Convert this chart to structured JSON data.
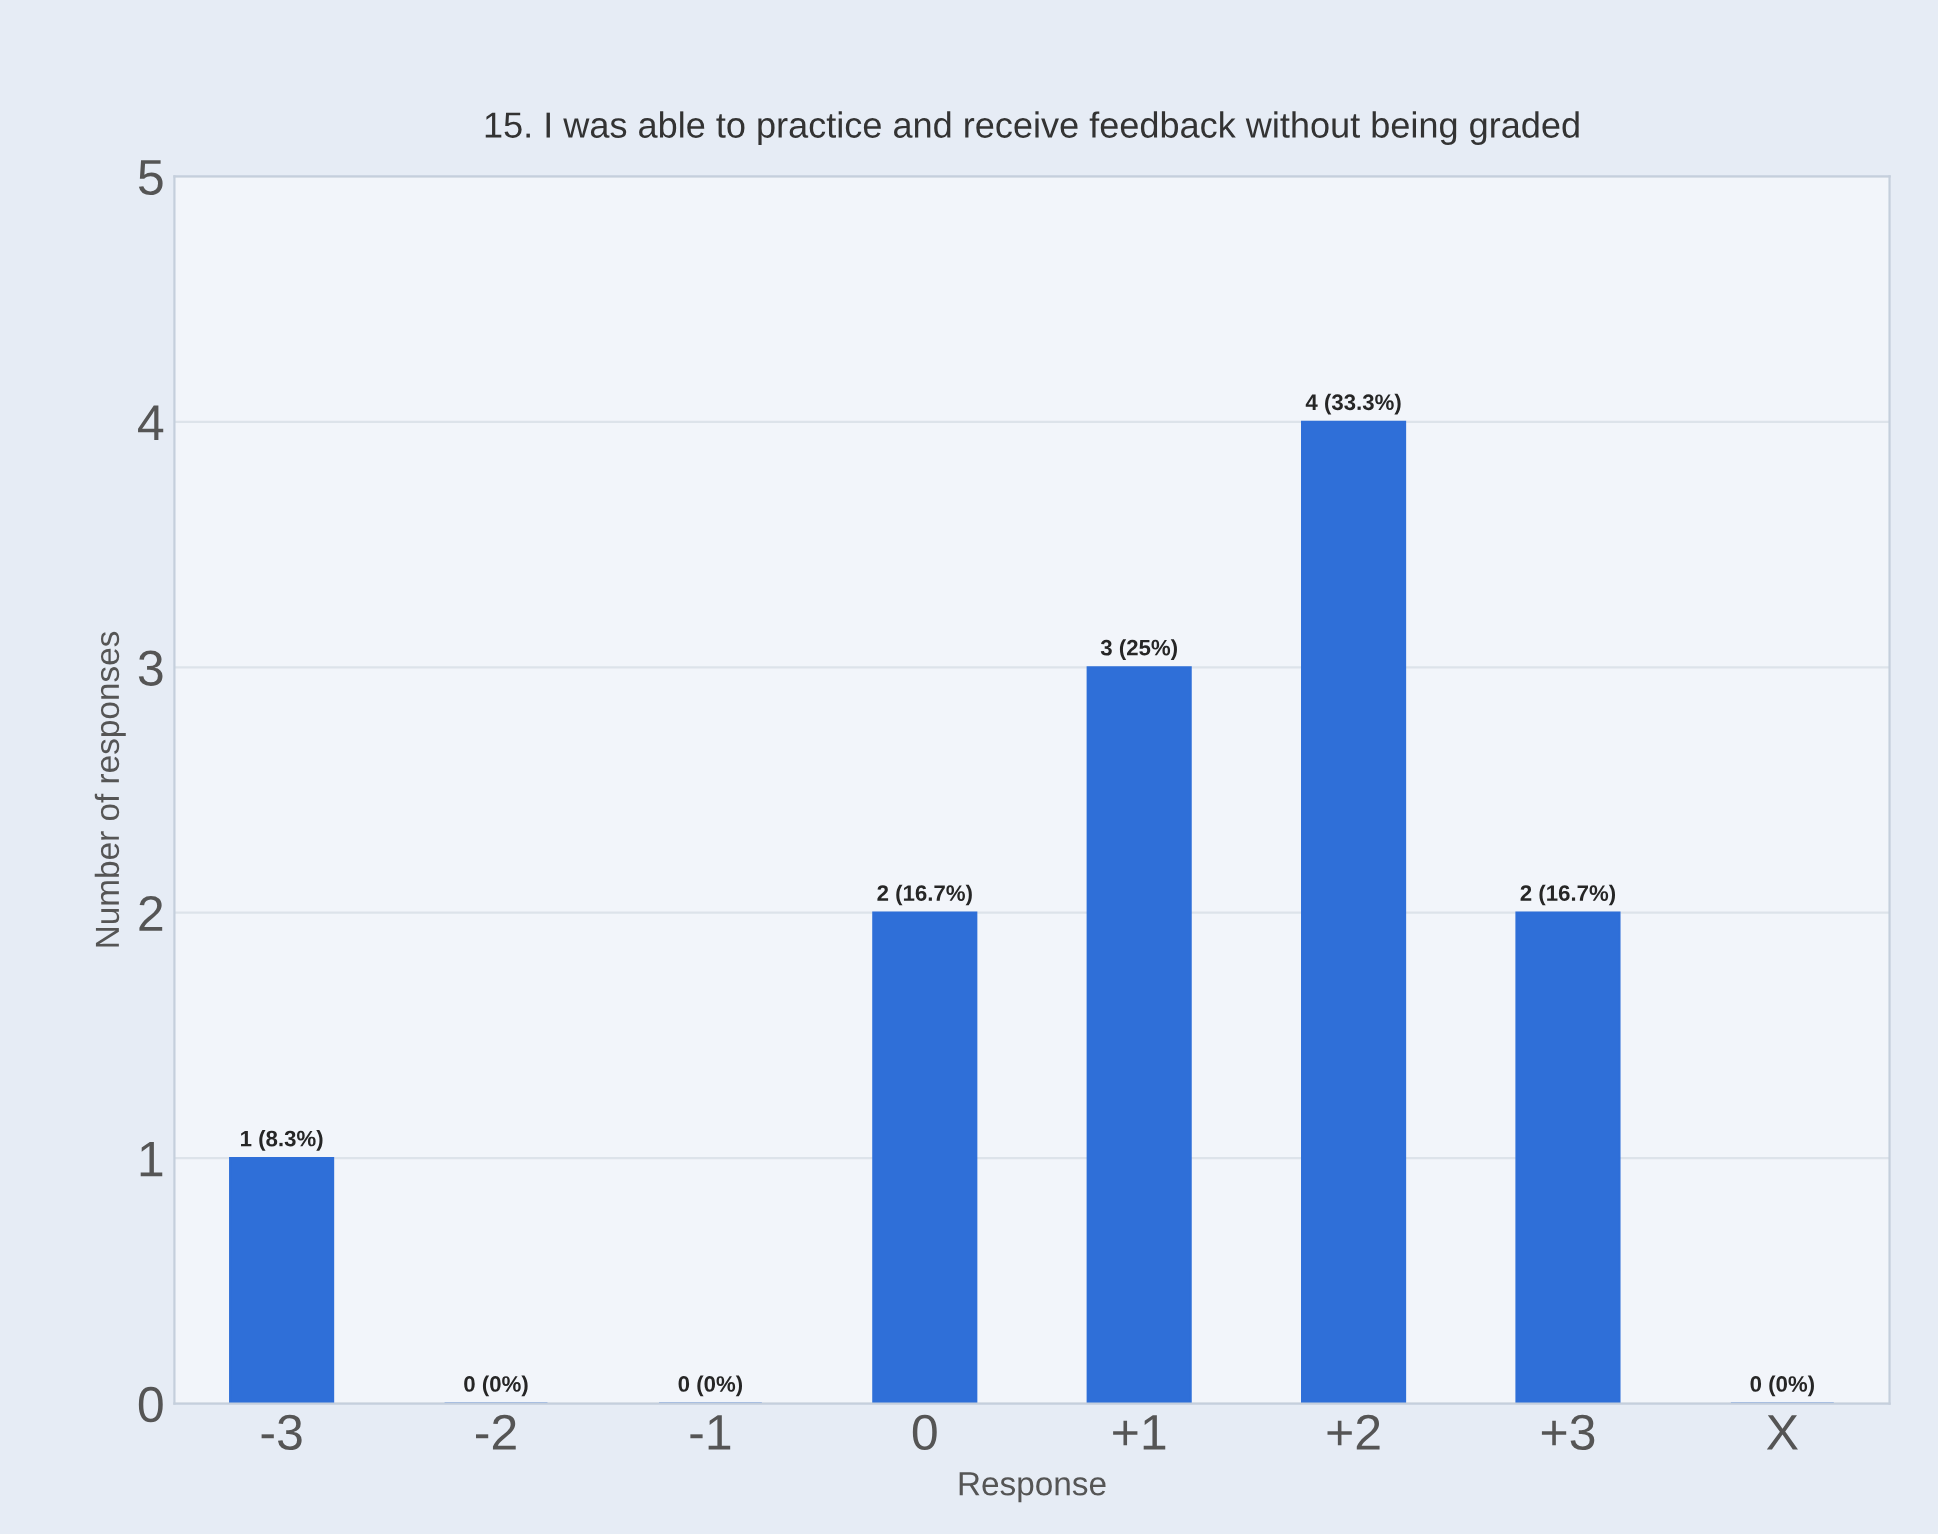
{
  "chart_data": {
    "type": "bar",
    "title": "15. I was able to practice and receive feedback without being graded",
    "xlabel": "Response",
    "ylabel": "Number of responses",
    "categories": [
      "-3",
      "-2",
      "-1",
      "0",
      "+1",
      "+2",
      "+3",
      "X"
    ],
    "values": [
      1,
      0,
      0,
      2,
      3,
      4,
      2,
      0
    ],
    "value_labels": [
      "1 (8.3%)",
      "0 (0%)",
      "0 (0%)",
      "2 (16.7%)",
      "3 (25%)",
      "4 (33.3%)",
      "2 (16.7%)",
      "0 (0%)"
    ],
    "color": "#2f6fd8",
    "ylim": [
      0,
      5
    ],
    "yticks": [
      0,
      1,
      2,
      3,
      4,
      5
    ],
    "grid": "y"
  }
}
